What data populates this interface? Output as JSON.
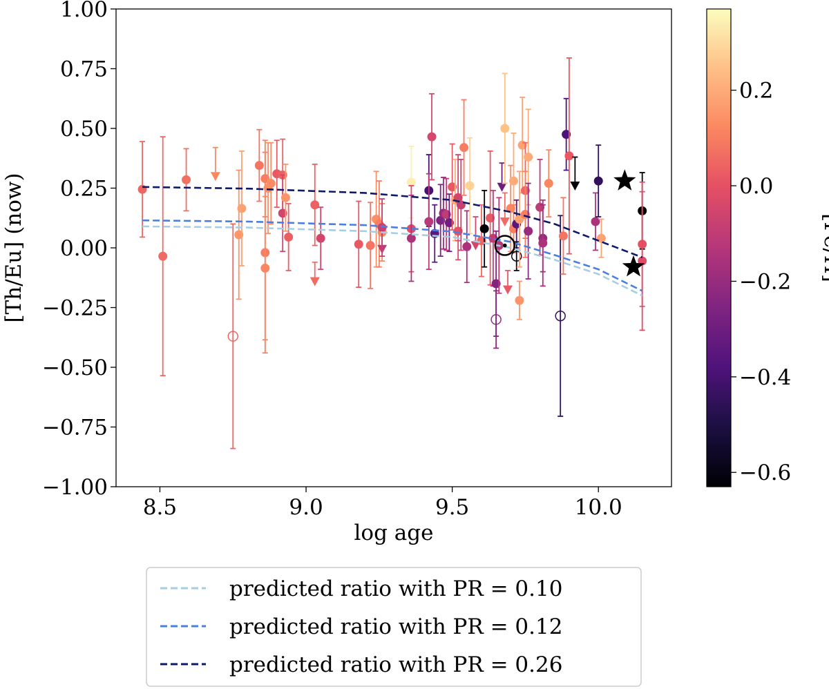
{
  "chart_data": {
    "type": "scatter",
    "xlabel": "log age",
    "ylabel": "[Th/Eu] (now)",
    "xlim": [
      8.35,
      10.25
    ],
    "ylim": [
      -1.0,
      1.0
    ],
    "xticks": [
      "8.5",
      "9.0",
      "9.5",
      "10.0"
    ],
    "yticks": [
      "1.00",
      "0.75",
      "0.50",
      "0.25",
      "0.00",
      "−0.25",
      "−0.50",
      "−0.75",
      "−1.00"
    ],
    "grid": false,
    "colorbar": {
      "label": "[Fe/H]",
      "range": [
        -0.63,
        0.37
      ],
      "ticks": [
        "0.2",
        "0.0",
        "−0.2",
        "−0.4",
        "−0.6"
      ],
      "colormap": "magma"
    },
    "series": [
      {
        "name": "predicted ratio with PR = 0.10",
        "style": "dashed",
        "color": "#a6cee3",
        "points": [
          [
            8.44,
            0.09
          ],
          [
            8.8,
            0.085
          ],
          [
            9.2,
            0.07
          ],
          [
            9.5,
            0.045
          ],
          [
            9.7,
            0.0
          ],
          [
            9.85,
            -0.05
          ],
          [
            10.0,
            -0.11
          ],
          [
            10.15,
            -0.2
          ]
        ]
      },
      {
        "name": "predicted ratio with PR = 0.12",
        "style": "dashed",
        "color": "#4a7ee0",
        "points": [
          [
            8.44,
            0.115
          ],
          [
            8.8,
            0.11
          ],
          [
            9.2,
            0.095
          ],
          [
            9.5,
            0.068
          ],
          [
            9.7,
            0.025
          ],
          [
            9.85,
            -0.03
          ],
          [
            10.0,
            -0.09
          ],
          [
            10.15,
            -0.18
          ]
        ]
      },
      {
        "name": "predicted ratio with PR = 0.26",
        "style": "dashed",
        "color": "#0d1a6b",
        "points": [
          [
            8.44,
            0.255
          ],
          [
            8.8,
            0.248
          ],
          [
            9.2,
            0.23
          ],
          [
            9.5,
            0.2
          ],
          [
            9.7,
            0.15
          ],
          [
            9.85,
            0.1
          ],
          [
            10.0,
            0.03
          ],
          [
            10.15,
            -0.04
          ]
        ]
      }
    ],
    "points": [
      {
        "x": 8.44,
        "y": 0.245,
        "feh": 0.05,
        "err": 0.2,
        "m": "circle"
      },
      {
        "x": 8.51,
        "y": -0.035,
        "feh": 0.06,
        "err": 0.5,
        "m": "circle"
      },
      {
        "x": 8.59,
        "y": 0.285,
        "feh": 0.07,
        "err": 0.13,
        "m": "circle"
      },
      {
        "x": 8.69,
        "y": 0.3,
        "feh": 0.12,
        "err": 0.12,
        "m": "down"
      },
      {
        "x": 8.75,
        "y": -0.37,
        "feh": 0.05,
        "err": 0.47,
        "m": "open"
      },
      {
        "x": 8.77,
        "y": 0.055,
        "feh": 0.15,
        "err": 0.27,
        "m": "circle"
      },
      {
        "x": 8.78,
        "y": 0.165,
        "feh": 0.18,
        "err": 0.24,
        "m": "circle"
      },
      {
        "x": 8.84,
        "y": 0.345,
        "feh": 0.08,
        "err": 0.15,
        "m": "circle"
      },
      {
        "x": 8.86,
        "y": 0.29,
        "feh": 0.1,
        "err": 0.16,
        "m": "circle"
      },
      {
        "x": 8.86,
        "y": -0.02,
        "feh": 0.1,
        "err": 0.42,
        "m": "circle"
      },
      {
        "x": 8.86,
        "y": -0.085,
        "feh": 0.12,
        "err": 0.3,
        "m": "circle"
      },
      {
        "x": 8.87,
        "y": 0.25,
        "feh": 0.14,
        "err": 0.19,
        "m": "circle"
      },
      {
        "x": 8.88,
        "y": 0.27,
        "feh": 0.13,
        "err": 0.17,
        "m": "circle"
      },
      {
        "x": 8.9,
        "y": 0.31,
        "feh": 0.02,
        "err": 0.14,
        "m": "circle"
      },
      {
        "x": 8.92,
        "y": 0.305,
        "feh": 0.04,
        "err": 0.15,
        "m": "circle"
      },
      {
        "x": 8.92,
        "y": 0.145,
        "feh": -0.05,
        "err": 0.16,
        "m": "circle"
      },
      {
        "x": 8.93,
        "y": 0.21,
        "feh": 0.15,
        "err": 0.14,
        "m": "circle"
      },
      {
        "x": 8.94,
        "y": 0.045,
        "feh": 0.03,
        "err": 0.14,
        "m": "circle"
      },
      {
        "x": 9.03,
        "y": 0.18,
        "feh": 0.04,
        "err": 0.17,
        "m": "circle"
      },
      {
        "x": 9.03,
        "y": -0.14,
        "feh": 0.06,
        "err": 0.08,
        "m": "down"
      },
      {
        "x": 9.05,
        "y": 0.04,
        "feh": -0.05,
        "err": 0.13,
        "m": "circle"
      },
      {
        "x": 9.18,
        "y": 0.015,
        "feh": 0.02,
        "err": 0.18,
        "m": "circle"
      },
      {
        "x": 9.22,
        "y": 0.01,
        "feh": 0.08,
        "err": 0.18,
        "m": "circle"
      },
      {
        "x": 9.24,
        "y": 0.12,
        "feh": 0.14,
        "err": 0.2,
        "m": "circle"
      },
      {
        "x": 9.25,
        "y": 0.1,
        "feh": 0.1,
        "err": 0.18,
        "m": "circle"
      },
      {
        "x": 9.26,
        "y": 0.065,
        "feh": 0.12,
        "err": 0.12,
        "m": "circle"
      },
      {
        "x": 9.26,
        "y": -0.005,
        "feh": -0.1,
        "err": 0.09,
        "m": "down"
      },
      {
        "x": 9.26,
        "y": 0.085,
        "feh": -0.08,
        "err": 0.12,
        "m": "circle"
      },
      {
        "x": 9.36,
        "y": 0.275,
        "feh": 0.34,
        "err": 0.15,
        "m": "circle"
      },
      {
        "x": 9.36,
        "y": 0.08,
        "feh": -0.02,
        "err": 0.18,
        "m": "circle"
      },
      {
        "x": 9.36,
        "y": 0.04,
        "feh": -0.15,
        "err": 0.18,
        "m": "circle"
      },
      {
        "x": 9.42,
        "y": 0.24,
        "feh": -0.4,
        "err": 0.15,
        "m": "circle"
      },
      {
        "x": 9.42,
        "y": 0.11,
        "feh": -0.12,
        "err": 0.2,
        "m": "circle"
      },
      {
        "x": 9.43,
        "y": 0.465,
        "feh": -0.04,
        "err": 0.18,
        "m": "circle"
      },
      {
        "x": 9.44,
        "y": 0.06,
        "feh": -0.34,
        "err": 0.12,
        "m": "circle"
      },
      {
        "x": 9.46,
        "y": 0.115,
        "feh": -0.26,
        "err": 0.15,
        "m": "circle"
      },
      {
        "x": 9.47,
        "y": 0.145,
        "feh": -0.2,
        "err": 0.15,
        "m": "circle"
      },
      {
        "x": 9.48,
        "y": 0.14,
        "feh": -0.1,
        "err": 0.15,
        "m": "circle"
      },
      {
        "x": 9.49,
        "y": 0.105,
        "feh": -0.3,
        "err": 0.12,
        "m": "circle"
      },
      {
        "x": 9.5,
        "y": 0.255,
        "feh": 0.02,
        "err": 0.18,
        "m": "circle"
      },
      {
        "x": 9.51,
        "y": 0.2,
        "feh": 0.2,
        "err": 0.17,
        "m": "circle"
      },
      {
        "x": 9.52,
        "y": 0.21,
        "feh": -0.05,
        "err": 0.18,
        "m": "circle"
      },
      {
        "x": 9.52,
        "y": 0.07,
        "feh": 0.0,
        "err": 0.12,
        "m": "circle"
      },
      {
        "x": 9.53,
        "y": 0.18,
        "feh": -0.08,
        "err": 0.19,
        "m": "circle"
      },
      {
        "x": 9.54,
        "y": 0.42,
        "feh": 0.1,
        "err": 0.2,
        "m": "circle"
      },
      {
        "x": 9.55,
        "y": 0.005,
        "feh": -0.15,
        "err": 0.15,
        "m": "circle"
      },
      {
        "x": 9.56,
        "y": 0.26,
        "feh": 0.28,
        "err": 0.2,
        "m": "circle"
      },
      {
        "x": 9.58,
        "y": 0.01,
        "feh": -0.05,
        "err": 0.12,
        "m": "down"
      },
      {
        "x": 9.6,
        "y": 0.03,
        "feh": 0.05,
        "err": 0.15,
        "m": "circle"
      },
      {
        "x": 9.61,
        "y": 0.08,
        "feh": -0.62,
        "err": 0.16,
        "m": "circle"
      },
      {
        "x": 9.63,
        "y": 0.125,
        "feh": 0.02,
        "err": 0.28,
        "m": "circle"
      },
      {
        "x": 9.64,
        "y": 0.04,
        "feh": -0.1,
        "err": 0.2,
        "m": "circle"
      },
      {
        "x": 9.65,
        "y": -0.3,
        "feh": -0.2,
        "err": 0.12,
        "m": "open"
      },
      {
        "x": 9.65,
        "y": -0.15,
        "feh": -0.25,
        "err": 0.22,
        "m": "circle"
      },
      {
        "x": 9.66,
        "y": 0.01,
        "feh": -0.12,
        "err": 0.2,
        "m": "circle"
      },
      {
        "x": 9.67,
        "y": 0.255,
        "feh": -0.3,
        "err": 0.1,
        "m": "down"
      },
      {
        "x": 9.68,
        "y": 0.5,
        "feh": 0.25,
        "err": 0.23,
        "m": "circle"
      },
      {
        "x": 9.68,
        "y": 0.11,
        "feh": 0.06,
        "err": 0.12,
        "m": "down"
      },
      {
        "x": 9.69,
        "y": -0.175,
        "feh": 0.02,
        "err": 0.08,
        "m": "down"
      },
      {
        "x": 9.7,
        "y": 0.165,
        "feh": 0.12,
        "err": 0.18,
        "m": "circle"
      },
      {
        "x": 9.71,
        "y": 0.28,
        "feh": 0.2,
        "err": 0.2,
        "m": "circle"
      },
      {
        "x": 9.71,
        "y": 0.08,
        "feh": 0.1,
        "err": 0.1,
        "m": "circle"
      },
      {
        "x": 9.72,
        "y": 0.1,
        "feh": -0.35,
        "err": 0.1,
        "m": "circle"
      },
      {
        "x": 9.72,
        "y": -0.035,
        "feh": -0.6,
        "err": 0.06,
        "m": "open"
      },
      {
        "x": 9.73,
        "y": -0.22,
        "feh": 0.15,
        "err": 0.08,
        "m": "circle"
      },
      {
        "x": 9.73,
        "y": 0.12,
        "feh": 0.18,
        "err": 0.2,
        "m": "circle"
      },
      {
        "x": 9.74,
        "y": 0.43,
        "feh": 0.18,
        "err": 0.2,
        "m": "circle"
      },
      {
        "x": 9.75,
        "y": 0.24,
        "feh": 0.05,
        "err": 0.2,
        "m": "circle"
      },
      {
        "x": 9.75,
        "y": 0.14,
        "feh": 0.1,
        "err": 0.18,
        "m": "circle"
      },
      {
        "x": 9.76,
        "y": 0.38,
        "feh": 0.2,
        "err": 0.2,
        "m": "circle"
      },
      {
        "x": 9.76,
        "y": 0.07,
        "feh": -0.2,
        "err": 0.2,
        "m": "circle"
      },
      {
        "x": 9.8,
        "y": 0.17,
        "feh": -0.1,
        "err": 0.2,
        "m": "circle"
      },
      {
        "x": 9.81,
        "y": 0.04,
        "feh": -0.2,
        "err": 0.14,
        "m": "circle"
      },
      {
        "x": 9.81,
        "y": 0.02,
        "feh": -0.15,
        "err": 0.18,
        "m": "circle"
      },
      {
        "x": 9.83,
        "y": 0.27,
        "feh": 0.12,
        "err": 0.14,
        "m": "circle"
      },
      {
        "x": 9.87,
        "y": -0.285,
        "feh": -0.45,
        "err": 0.42,
        "m": "open"
      },
      {
        "x": 9.88,
        "y": 0.05,
        "feh": 0.08,
        "err": 0.16,
        "m": "circle"
      },
      {
        "x": 9.89,
        "y": 0.475,
        "feh": -0.38,
        "err": 0.15,
        "m": "circle"
      },
      {
        "x": 9.9,
        "y": 0.385,
        "feh": 0.02,
        "err": 0.41,
        "m": "circle"
      },
      {
        "x": 9.92,
        "y": 0.26,
        "feh": -0.62,
        "err": 0.12,
        "m": "down"
      },
      {
        "x": 9.99,
        "y": 0.11,
        "feh": -0.15,
        "err": 0.12,
        "m": "circle"
      },
      {
        "x": 10.0,
        "y": 0.28,
        "feh": -0.45,
        "err": 0.15,
        "m": "circle"
      },
      {
        "x": 10.01,
        "y": 0.04,
        "feh": 0.18,
        "err": 0.08,
        "m": "circle"
      },
      {
        "x": 10.15,
        "y": 0.155,
        "feh": -0.63,
        "err": 0.16,
        "m": "circle"
      },
      {
        "x": 10.15,
        "y": 0.015,
        "feh": 0.0,
        "err": 0.26,
        "m": "circle"
      },
      {
        "x": 10.15,
        "y": -0.055,
        "feh": -0.02,
        "err": 0.29,
        "m": "circle"
      }
    ],
    "stars": [
      {
        "x": 10.09,
        "y": 0.28
      },
      {
        "x": 10.12,
        "y": -0.08
      }
    ],
    "sun": {
      "x": 9.68,
      "y": 0.01
    }
  }
}
